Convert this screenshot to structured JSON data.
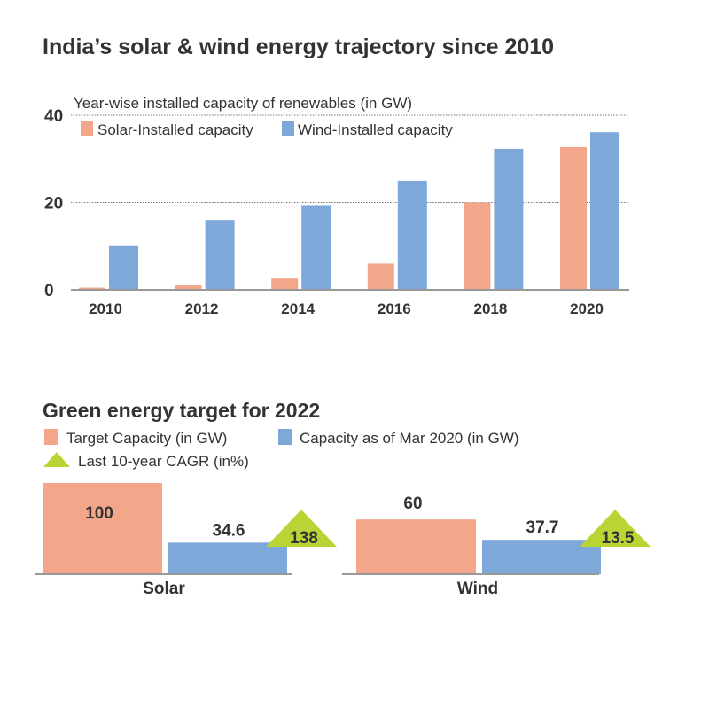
{
  "title": "India’s solar & wind energy trajectory since 2010",
  "colors": {
    "solar": "#f2a78a",
    "wind": "#7ea7da",
    "cagr": "#b8d535",
    "text": "#333333",
    "axis": "#999999"
  },
  "chart_data": [
    {
      "type": "bar",
      "title": "Year-wise installed capacity of renewables (in GW)",
      "categories": [
        "2010",
        "2012",
        "2014",
        "2016",
        "2018",
        "2020"
      ],
      "series": [
        {
          "name": "Solar-Installed capacity",
          "values": [
            0.5,
            1,
            2.6,
            6,
            20,
            32.7
          ]
        },
        {
          "name": "Wind-Installed capacity",
          "values": [
            10,
            16,
            19.4,
            25,
            32.3,
            36.1
          ]
        }
      ],
      "yticks": [
        0,
        20,
        40
      ],
      "ylim": [
        0,
        40
      ],
      "grid": true,
      "legend": "top-left"
    },
    {
      "type": "bar",
      "title": "Green energy target for 2022",
      "categories": [
        "Solar",
        "Wind"
      ],
      "series": [
        {
          "name": "Target Capacity (in GW)",
          "values": [
            100,
            60
          ],
          "labels": [
            "100",
            "60"
          ]
        },
        {
          "name": "Capacity as of Mar 2020 (in GW)",
          "values": [
            34.6,
            37.7
          ],
          "labels": [
            "34.6",
            "37.7"
          ]
        },
        {
          "name": "Last 10-year CAGR (in%)",
          "values": [
            138,
            13.5
          ],
          "labels": [
            "138",
            "13.5"
          ],
          "marker": "triangle"
        }
      ]
    }
  ]
}
